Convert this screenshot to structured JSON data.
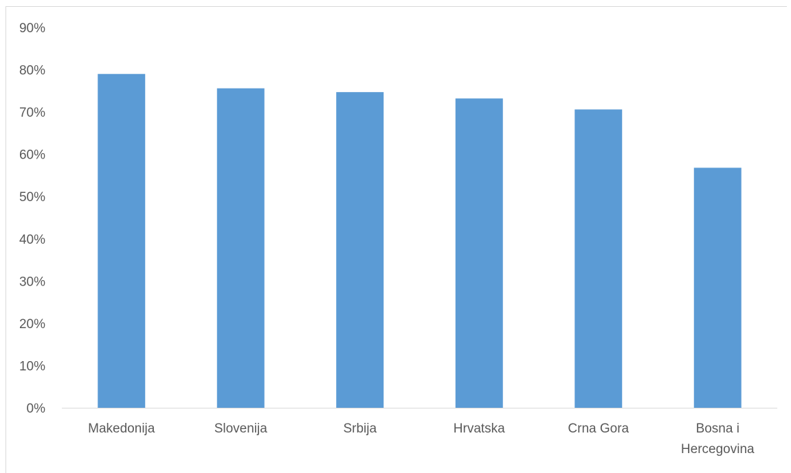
{
  "chart_data": {
    "type": "bar",
    "categories": [
      "Makedonija",
      "Slovenija",
      "Srbija",
      "Hrvatska",
      "Crna Gora",
      "Bosna i Hercegovina"
    ],
    "category_lines": [
      [
        "Makedonija"
      ],
      [
        "Slovenija"
      ],
      [
        "Srbija"
      ],
      [
        "Hrvatska"
      ],
      [
        "Crna Gora"
      ],
      [
        "Bosna i",
        "Hercegovina"
      ]
    ],
    "values": [
      0.79,
      0.756,
      0.747,
      0.732,
      0.706,
      0.568
    ],
    "y_ticks": [
      "0%",
      "10%",
      "20%",
      "30%",
      "40%",
      "50%",
      "60%",
      "70%",
      "80%",
      "90%"
    ],
    "ylim": [
      0,
      0.9
    ],
    "title": "",
    "xlabel": "",
    "ylabel": "",
    "grid": false,
    "legend": "none",
    "bar_color": "#5b9bd5",
    "axis_color": "#d9d9d9",
    "text_color": "#595959"
  }
}
